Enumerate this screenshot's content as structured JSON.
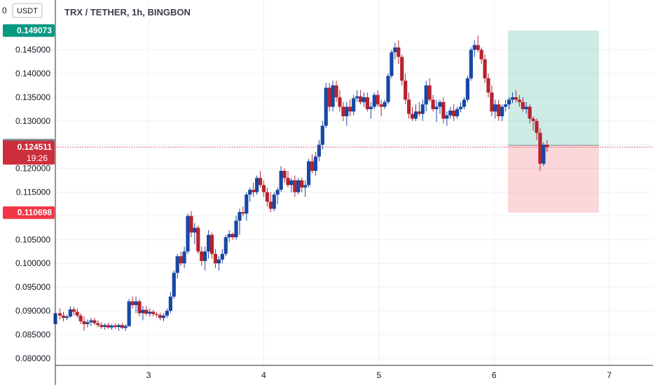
{
  "chart_data": {
    "type": "candlestick",
    "title": "TRX / TETHER, 1h, BINGBON",
    "currency": "USDT",
    "currency_tick_fragment": "0",
    "y_range": [
      0.0785,
      0.1555
    ],
    "y_ticks": [
      "0.080000",
      "0.085000",
      "0.090000",
      "0.095000",
      "0.100000",
      "0.105000",
      "0.110000",
      "0.115000",
      "0.120000",
      "0.125000",
      "0.130000",
      "0.135000",
      "0.140000",
      "0.145000"
    ],
    "x_range": [
      2.19,
      7.38
    ],
    "x_ticks": [
      {
        "value": 3,
        "label": "3"
      },
      {
        "value": 4,
        "label": "4"
      },
      {
        "value": 5,
        "label": "5"
      },
      {
        "value": 6,
        "label": "6"
      },
      {
        "value": 7,
        "label": "7"
      }
    ],
    "y_labels": [
      {
        "value": 0.149073,
        "text": "0.149073",
        "color": "#089981"
      },
      {
        "value": 0.124887,
        "text": "0.124887",
        "color": "#787b86"
      },
      {
        "value": 0.124511,
        "text": "0.124511",
        "color": "#cc2f3c"
      },
      {
        "value": 0.110698,
        "text": "0.110698",
        "color": "#f23645"
      }
    ],
    "current_price": 0.124511,
    "countdown": "19:26",
    "position": {
      "x_start": 6.12,
      "x_end": 6.91,
      "entry": 0.124887,
      "target": 0.149073,
      "stop": 0.110698
    },
    "up_color": "#1848a5",
    "down_color": "#b5242f",
    "candles": [
      [
        2.19,
        0.0872,
        0.09,
        0.0868,
        0.0895
      ],
      [
        2.23,
        0.0895,
        0.0905,
        0.0882,
        0.089
      ],
      [
        2.26,
        0.089,
        0.0898,
        0.0878,
        0.0885
      ],
      [
        2.29,
        0.0885,
        0.0892,
        0.088,
        0.0888
      ],
      [
        2.32,
        0.0888,
        0.091,
        0.0885,
        0.0903
      ],
      [
        2.35,
        0.0903,
        0.0908,
        0.089,
        0.0898
      ],
      [
        2.38,
        0.0898,
        0.0905,
        0.0885,
        0.089
      ],
      [
        2.41,
        0.089,
        0.0895,
        0.0872,
        0.0878
      ],
      [
        2.44,
        0.0878,
        0.0888,
        0.0858,
        0.0872
      ],
      [
        2.47,
        0.0872,
        0.0882,
        0.0865,
        0.0876
      ],
      [
        2.5,
        0.0876,
        0.0885,
        0.0868,
        0.088
      ],
      [
        2.53,
        0.088,
        0.0885,
        0.087,
        0.0874
      ],
      [
        2.56,
        0.0874,
        0.088,
        0.0865,
        0.087
      ],
      [
        2.59,
        0.087,
        0.0876,
        0.0862,
        0.0866
      ],
      [
        2.62,
        0.0866,
        0.0874,
        0.086,
        0.087
      ],
      [
        2.65,
        0.087,
        0.0875,
        0.0862,
        0.0865
      ],
      [
        2.68,
        0.0865,
        0.0872,
        0.086,
        0.0869
      ],
      [
        2.71,
        0.0869,
        0.0874,
        0.0862,
        0.0866
      ],
      [
        2.74,
        0.0866,
        0.0873,
        0.0858,
        0.087
      ],
      [
        2.77,
        0.087,
        0.0875,
        0.0862,
        0.0864
      ],
      [
        2.8,
        0.0864,
        0.0872,
        0.0858,
        0.0868
      ],
      [
        2.83,
        0.0868,
        0.0925,
        0.0866,
        0.092
      ],
      [
        2.86,
        0.092,
        0.093,
        0.0905,
        0.0912
      ],
      [
        2.89,
        0.0912,
        0.093,
        0.0895,
        0.092
      ],
      [
        2.92,
        0.092,
        0.0925,
        0.0888,
        0.0895
      ],
      [
        2.95,
        0.0895,
        0.091,
        0.088,
        0.0902
      ],
      [
        2.98,
        0.0902,
        0.091,
        0.089,
        0.0894
      ],
      [
        3.01,
        0.0894,
        0.0905,
        0.0888,
        0.0898
      ],
      [
        3.04,
        0.0898,
        0.0902,
        0.0888,
        0.0893
      ],
      [
        3.07,
        0.0893,
        0.0898,
        0.0886,
        0.0891
      ],
      [
        3.1,
        0.0891,
        0.0896,
        0.088,
        0.0885
      ],
      [
        3.13,
        0.0885,
        0.0895,
        0.0878,
        0.089
      ],
      [
        3.16,
        0.089,
        0.0905,
        0.0885,
        0.09
      ],
      [
        3.19,
        0.09,
        0.094,
        0.0895,
        0.093
      ],
      [
        3.22,
        0.093,
        0.0985,
        0.0925,
        0.098
      ],
      [
        3.25,
        0.098,
        0.102,
        0.0968,
        0.1015
      ],
      [
        3.28,
        0.1015,
        0.1025,
        0.0995,
        0.1
      ],
      [
        3.31,
        0.1,
        0.1035,
        0.099,
        0.1025
      ],
      [
        3.34,
        0.1025,
        0.1105,
        0.102,
        0.11
      ],
      [
        3.37,
        0.11,
        0.111,
        0.1055,
        0.1065
      ],
      [
        3.4,
        0.1065,
        0.1085,
        0.104,
        0.1075
      ],
      [
        3.43,
        0.1075,
        0.108,
        0.102,
        0.1025
      ],
      [
        3.46,
        0.1025,
        0.1035,
        0.0995,
        0.1005
      ],
      [
        3.49,
        0.1005,
        0.1035,
        0.0985,
        0.1025
      ],
      [
        3.52,
        0.1025,
        0.107,
        0.101,
        0.106
      ],
      [
        3.55,
        0.106,
        0.1065,
        0.101,
        0.102
      ],
      [
        3.58,
        0.102,
        0.103,
        0.099,
        0.1
      ],
      [
        3.61,
        0.1,
        0.1015,
        0.0985,
        0.1008
      ],
      [
        3.64,
        0.1008,
        0.103,
        0.1,
        0.102
      ],
      [
        3.67,
        0.102,
        0.106,
        0.1015,
        0.1055
      ],
      [
        3.7,
        0.1055,
        0.107,
        0.1045,
        0.1062
      ],
      [
        3.73,
        0.1062,
        0.1065,
        0.105,
        0.1055
      ],
      [
        3.76,
        0.1055,
        0.11,
        0.105,
        0.109
      ],
      [
        3.79,
        0.109,
        0.1115,
        0.106,
        0.1108
      ],
      [
        3.82,
        0.1108,
        0.112,
        0.11,
        0.1105
      ],
      [
        3.85,
        0.1105,
        0.115,
        0.109,
        0.1145
      ],
      [
        3.88,
        0.1145,
        0.116,
        0.113,
        0.1155
      ],
      [
        3.91,
        0.1155,
        0.117,
        0.114,
        0.115
      ],
      [
        3.94,
        0.115,
        0.1185,
        0.1145,
        0.118
      ],
      [
        3.97,
        0.118,
        0.1195,
        0.116,
        0.1165
      ],
      [
        4.0,
        0.1165,
        0.1175,
        0.114,
        0.115
      ],
      [
        4.03,
        0.115,
        0.116,
        0.112,
        0.113
      ],
      [
        4.06,
        0.113,
        0.115,
        0.1108,
        0.1115
      ],
      [
        4.09,
        0.1115,
        0.115,
        0.111,
        0.1145
      ],
      [
        4.12,
        0.1145,
        0.116,
        0.1125,
        0.1155
      ],
      [
        4.15,
        0.1155,
        0.1205,
        0.115,
        0.1195
      ],
      [
        4.18,
        0.1195,
        0.12,
        0.117,
        0.118
      ],
      [
        4.21,
        0.118,
        0.1195,
        0.116,
        0.1165
      ],
      [
        4.24,
        0.1165,
        0.118,
        0.115,
        0.1175
      ],
      [
        4.27,
        0.1175,
        0.1185,
        0.114,
        0.115
      ],
      [
        4.3,
        0.115,
        0.118,
        0.1145,
        0.1175
      ],
      [
        4.33,
        0.1175,
        0.118,
        0.115,
        0.116
      ],
      [
        4.36,
        0.116,
        0.1175,
        0.114,
        0.1165
      ],
      [
        4.39,
        0.1165,
        0.122,
        0.116,
        0.1215
      ],
      [
        4.42,
        0.1215,
        0.123,
        0.119,
        0.1195
      ],
      [
        4.45,
        0.1195,
        0.1235,
        0.1185,
        0.1225
      ],
      [
        4.48,
        0.1225,
        0.126,
        0.1215,
        0.125
      ],
      [
        4.51,
        0.125,
        0.13,
        0.124,
        0.129
      ],
      [
        4.54,
        0.129,
        0.138,
        0.1285,
        0.137
      ],
      [
        4.57,
        0.137,
        0.138,
        0.132,
        0.133
      ],
      [
        4.6,
        0.133,
        0.1385,
        0.132,
        0.1375
      ],
      [
        4.63,
        0.1375,
        0.1385,
        0.134,
        0.135
      ],
      [
        4.66,
        0.135,
        0.1365,
        0.132,
        0.133
      ],
      [
        4.69,
        0.133,
        0.134,
        0.13,
        0.131
      ],
      [
        4.72,
        0.131,
        0.134,
        0.129,
        0.133
      ],
      [
        4.75,
        0.133,
        0.1345,
        0.131,
        0.132
      ],
      [
        4.78,
        0.132,
        0.1355,
        0.1312,
        0.1348
      ],
      [
        4.81,
        0.1348,
        0.1365,
        0.134,
        0.1352
      ],
      [
        4.84,
        0.1352,
        0.1365,
        0.1335,
        0.134
      ],
      [
        4.87,
        0.134,
        0.136,
        0.133,
        0.135
      ],
      [
        4.9,
        0.135,
        0.136,
        0.132,
        0.1325
      ],
      [
        4.93,
        0.1325,
        0.134,
        0.1305,
        0.133
      ],
      [
        4.96,
        0.133,
        0.136,
        0.1325,
        0.1355
      ],
      [
        4.99,
        0.1355,
        0.1365,
        0.133,
        0.1335
      ],
      [
        5.02,
        0.1335,
        0.1345,
        0.131,
        0.133
      ],
      [
        5.05,
        0.133,
        0.1345,
        0.1325,
        0.134
      ],
      [
        5.08,
        0.134,
        0.14,
        0.1335,
        0.1395
      ],
      [
        5.11,
        0.1395,
        0.145,
        0.139,
        0.1445
      ],
      [
        5.14,
        0.1445,
        0.1465,
        0.143,
        0.1455
      ],
      [
        5.17,
        0.1455,
        0.147,
        0.142,
        0.1435
      ],
      [
        5.2,
        0.1435,
        0.144,
        0.1375,
        0.1385
      ],
      [
        5.23,
        0.1385,
        0.14,
        0.1335,
        0.1345
      ],
      [
        5.26,
        0.1345,
        0.136,
        0.1305,
        0.1315
      ],
      [
        5.29,
        0.1315,
        0.133,
        0.13,
        0.1305
      ],
      [
        5.32,
        0.1305,
        0.1335,
        0.13,
        0.132
      ],
      [
        5.35,
        0.132,
        0.134,
        0.131,
        0.1315
      ],
      [
        5.38,
        0.1315,
        0.1345,
        0.13,
        0.1335
      ],
      [
        5.41,
        0.1335,
        0.1385,
        0.132,
        0.1375
      ],
      [
        5.44,
        0.1375,
        0.139,
        0.134,
        0.1345
      ],
      [
        5.47,
        0.1345,
        0.1355,
        0.132,
        0.1325
      ],
      [
        5.5,
        0.1325,
        0.1345,
        0.1298,
        0.133
      ],
      [
        5.53,
        0.133,
        0.1345,
        0.1315,
        0.134
      ],
      [
        5.56,
        0.134,
        0.135,
        0.1295,
        0.1305
      ],
      [
        5.59,
        0.1305,
        0.132,
        0.129,
        0.1312
      ],
      [
        5.62,
        0.1312,
        0.133,
        0.1305,
        0.1322
      ],
      [
        5.65,
        0.1322,
        0.1335,
        0.13,
        0.131
      ],
      [
        5.68,
        0.131,
        0.133,
        0.1305,
        0.1325
      ],
      [
        5.71,
        0.1325,
        0.134,
        0.1318,
        0.133
      ]
    ],
    "note_candles_part2": "",
    "candles_b": [
      [
        5.74,
        0.133,
        0.135,
        0.1325,
        0.1345
      ],
      [
        5.77,
        0.1345,
        0.1395,
        0.134,
        0.139
      ],
      [
        5.8,
        0.139,
        0.1455,
        0.1385,
        0.145
      ],
      [
        5.83,
        0.145,
        0.147,
        0.1435,
        0.146
      ],
      [
        5.86,
        0.146,
        0.148,
        0.1445,
        0.145
      ],
      [
        5.89,
        0.145,
        0.1455,
        0.142,
        0.143
      ],
      [
        5.92,
        0.143,
        0.144,
        0.138,
        0.139
      ],
      [
        5.95,
        0.139,
        0.14,
        0.135,
        0.136
      ],
      [
        5.98,
        0.136,
        0.1375,
        0.131,
        0.132
      ],
      [
        6.01,
        0.132,
        0.1345,
        0.1305,
        0.1335
      ],
      [
        6.04,
        0.1335,
        0.1345,
        0.13,
        0.131
      ],
      [
        6.07,
        0.131,
        0.1335,
        0.13,
        0.133
      ],
      [
        6.1,
        0.133,
        0.1345,
        0.132,
        0.1335
      ],
      [
        6.13,
        0.1335,
        0.135,
        0.1325,
        0.1345
      ],
      [
        6.16,
        0.1345,
        0.136,
        0.1338,
        0.135
      ],
      [
        6.19,
        0.135,
        0.1365,
        0.134,
        0.1345
      ],
      [
        6.22,
        0.1345,
        0.1355,
        0.133,
        0.134
      ],
      [
        6.25,
        0.134,
        0.135,
        0.132,
        0.1325
      ],
      [
        6.28,
        0.1325,
        0.134,
        0.1315,
        0.133
      ],
      [
        6.31,
        0.133,
        0.1335,
        0.1295,
        0.1305
      ],
      [
        6.34,
        0.1305,
        0.131,
        0.128,
        0.13
      ],
      [
        6.37,
        0.13,
        0.1305,
        0.126,
        0.1275
      ],
      [
        6.4,
        0.1275,
        0.1285,
        0.1195,
        0.121
      ],
      [
        6.43,
        0.121,
        0.1255,
        0.1205,
        0.125
      ],
      [
        6.46,
        0.125,
        0.126,
        0.1235,
        0.1245
      ]
    ]
  }
}
